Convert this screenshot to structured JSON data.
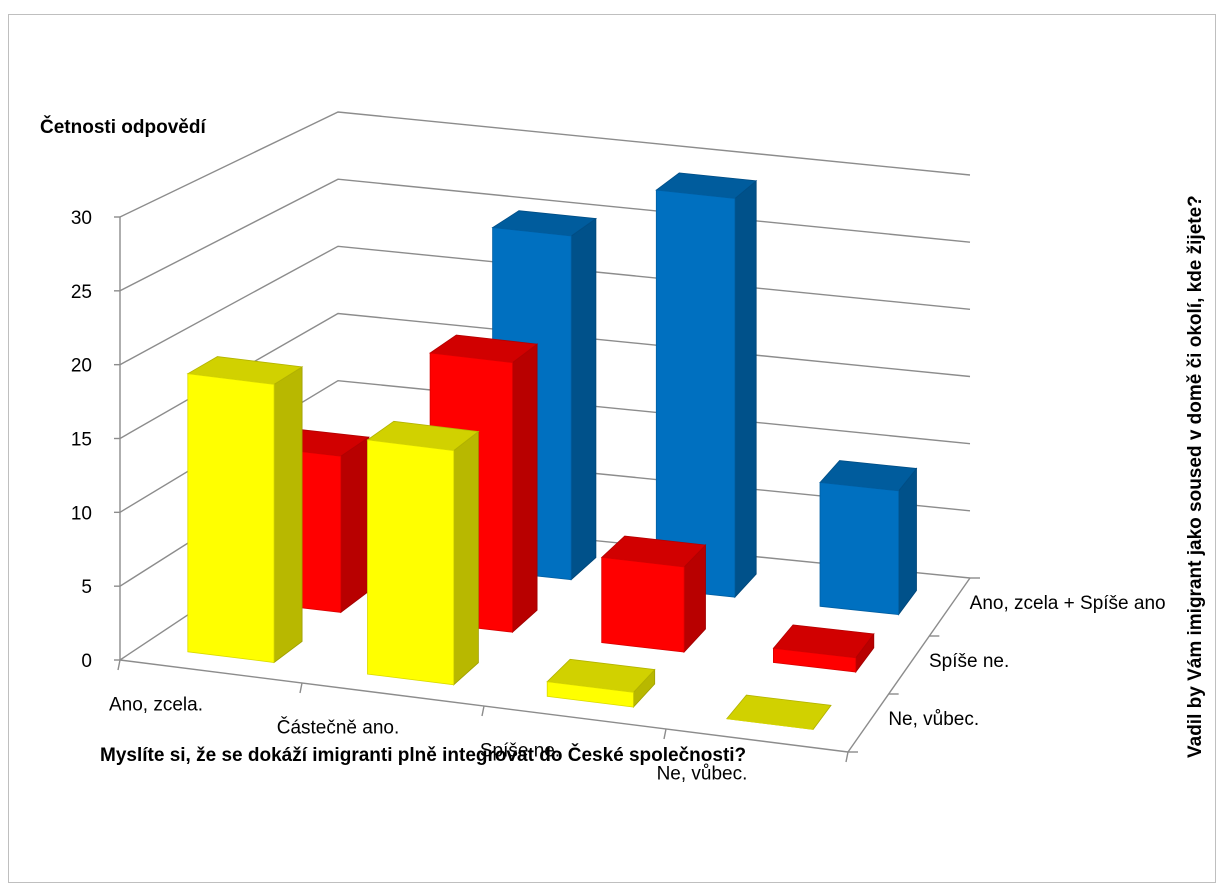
{
  "chart_data": {
    "type": "bar",
    "subtype": "3d-clustered-column",
    "title": "",
    "ylabel": "Četnosti odpovědí",
    "xlabel": "Myslíte si, že se dokáží imigranti plně integrovat do České společnosti?",
    "zlabel": "Vadil by Vám imigrant jako soused v domě či okolí, kde žijete?",
    "categories": [
      "Ano, zcela.",
      "Částečně ano.",
      "Spíše ne.",
      "Ne, vůbec."
    ],
    "ylim": [
      0,
      30
    ],
    "yticks": [
      "0",
      "5",
      "10",
      "15",
      "20",
      "25",
      "30"
    ],
    "grid": true,
    "series": [
      {
        "name": "Ne, vůbec.",
        "color": "#ffff00",
        "values": [
          19,
          16,
          1,
          0
        ]
      },
      {
        "name": "Spíše ne.",
        "color": "#ff0000",
        "values": [
          11,
          19,
          6,
          1
        ]
      },
      {
        "name": "Ano, zcela + Spíše ano",
        "color": "#0070c0",
        "values": [
          2,
          25,
          29,
          9
        ]
      }
    ]
  }
}
